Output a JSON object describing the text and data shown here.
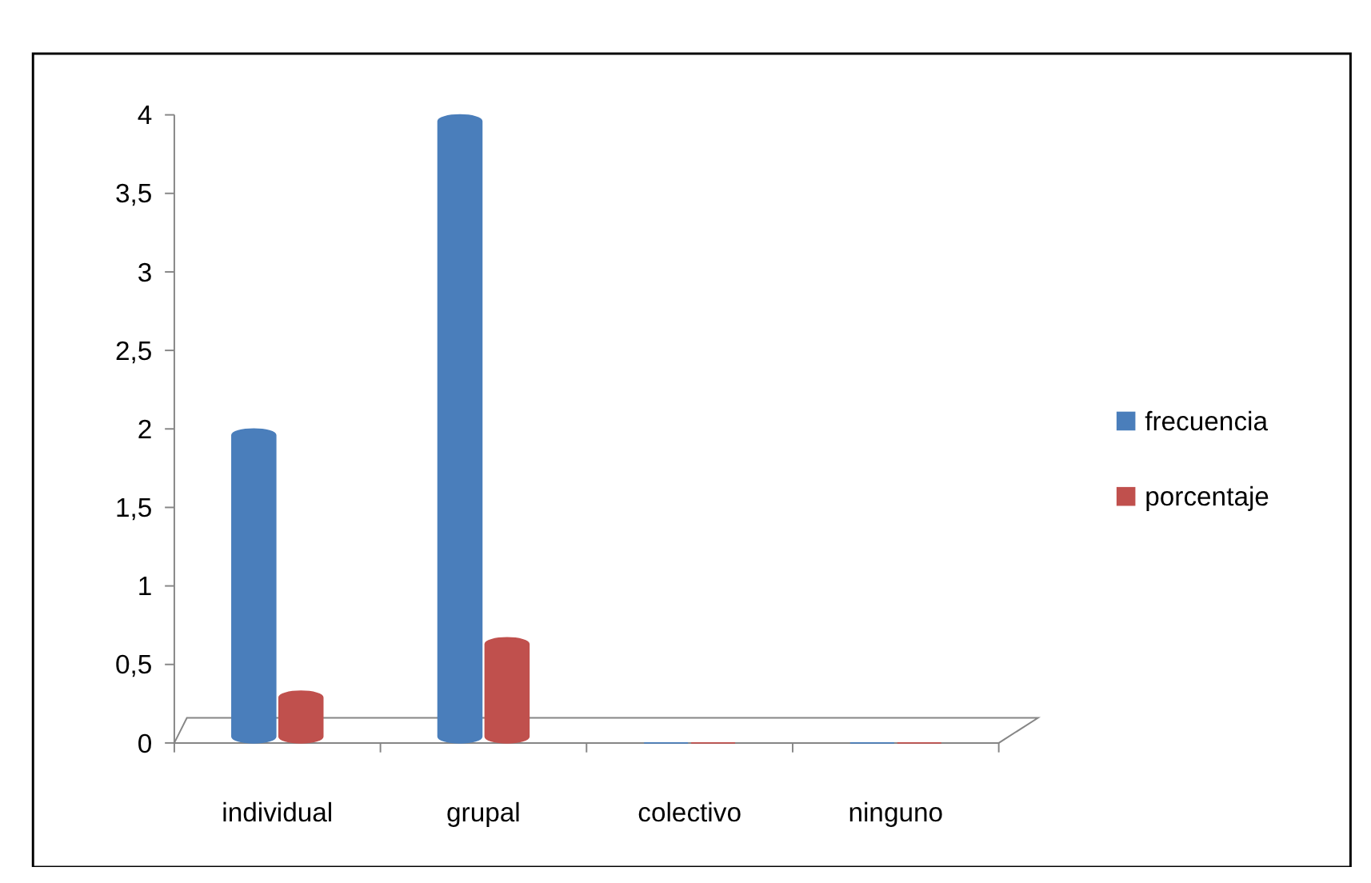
{
  "chart_data": {
    "type": "bar",
    "categories": [
      "individual",
      "grupal",
      "colectivo",
      "ninguno"
    ],
    "series": [
      {
        "name": "frecuencia",
        "color": "#4a7ebb",
        "values": [
          2,
          4,
          0,
          0
        ]
      },
      {
        "name": "porcentaje",
        "color": "#c0504d",
        "values": [
          0.33,
          0.67,
          0,
          0
        ]
      }
    ],
    "ylim": [
      0,
      4
    ],
    "yticks": [
      0,
      {
        "value": 0.5,
        "label": "0,5"
      },
      1,
      {
        "value": 1.5,
        "label": "1,5"
      },
      2,
      {
        "value": 2.5,
        "label": "2,5"
      },
      3,
      {
        "value": 3.5,
        "label": "3,5"
      },
      4
    ],
    "grid": false,
    "legend": "right"
  }
}
